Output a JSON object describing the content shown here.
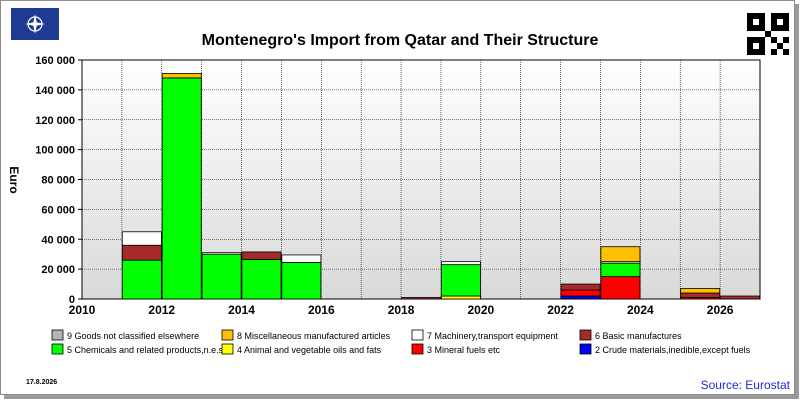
{
  "title": "Montenegro's Import from Qatar and Their Structure",
  "date_stamp": "17.8.2026",
  "source": "Source: Eurostat",
  "chart_data": {
    "type": "bar",
    "stacked": true,
    "ylabel": "Euro",
    "ylim": [
      0,
      160000
    ],
    "y_ticks": [
      0,
      20000,
      40000,
      60000,
      80000,
      100000,
      120000,
      140000,
      160000
    ],
    "y_tick_labels": [
      "0",
      "20 000",
      "40 000",
      "60 000",
      "80 000",
      "100 000",
      "120 000",
      "140 000",
      "160 000"
    ],
    "x_tick_labels": [
      "2010",
      "2012",
      "2014",
      "2016",
      "2018",
      "2020",
      "2022",
      "2024",
      "2026"
    ],
    "categories": [
      "2010",
      "2011",
      "2012",
      "2013",
      "2014",
      "2015",
      "2016",
      "2017",
      "2018",
      "2019",
      "2020",
      "2021",
      "2022",
      "2023",
      "2024",
      "2025",
      "2026"
    ],
    "series": [
      {
        "name": "9 Goods not classified elsewhere",
        "color": "#b4b4b4",
        "values": [
          0,
          0,
          0,
          0,
          0,
          0,
          0,
          0,
          0,
          0,
          0,
          0,
          0,
          0,
          0,
          0,
          0
        ]
      },
      {
        "name": "8 Miscellaneous manufactured articles",
        "color": "#ffc000",
        "values": [
          0,
          0,
          3000,
          0,
          0,
          0,
          0,
          0,
          0,
          0,
          0,
          0,
          0,
          10000,
          0,
          3000,
          0
        ]
      },
      {
        "name": "7 Machinery,transport equipment",
        "color": "#ffffff",
        "values": [
          0,
          9000,
          0,
          1000,
          0,
          5000,
          0,
          0,
          0,
          2000,
          0,
          0,
          0,
          1000,
          0,
          0,
          0
        ]
      },
      {
        "name": "6 Basic manufactures",
        "color": "#a52a2a",
        "values": [
          0,
          10000,
          0,
          0,
          5000,
          0,
          0,
          0,
          1000,
          0,
          0,
          0,
          4000,
          0,
          0,
          3000,
          2000
        ]
      },
      {
        "name": "5 Chemicals and related products,n.e.s.",
        "color": "#00ff00",
        "values": [
          0,
          26000,
          148000,
          30000,
          26500,
          24500,
          0,
          0,
          0,
          21000,
          0,
          0,
          0,
          9000,
          0,
          0,
          0
        ]
      },
      {
        "name": "4 Animal and vegetable oils and fats",
        "color": "#ffff00",
        "values": [
          0,
          0,
          0,
          0,
          0,
          0,
          0,
          0,
          0,
          2000,
          0,
          0,
          0,
          0,
          0,
          0,
          0
        ]
      },
      {
        "name": "3 Mineral fuels etc",
        "color": "#ff0000",
        "values": [
          0,
          0,
          0,
          0,
          0,
          0,
          0,
          0,
          0,
          0,
          0,
          0,
          4000,
          15000,
          0,
          1000,
          0
        ]
      },
      {
        "name": "2 Crude materials,inedible,except fuels",
        "color": "#0000ff",
        "values": [
          0,
          0,
          0,
          0,
          0,
          0,
          0,
          0,
          0,
          0,
          0,
          0,
          2000,
          0,
          0,
          0,
          0
        ]
      }
    ],
    "legend_placement": "bottom",
    "grid": true
  }
}
